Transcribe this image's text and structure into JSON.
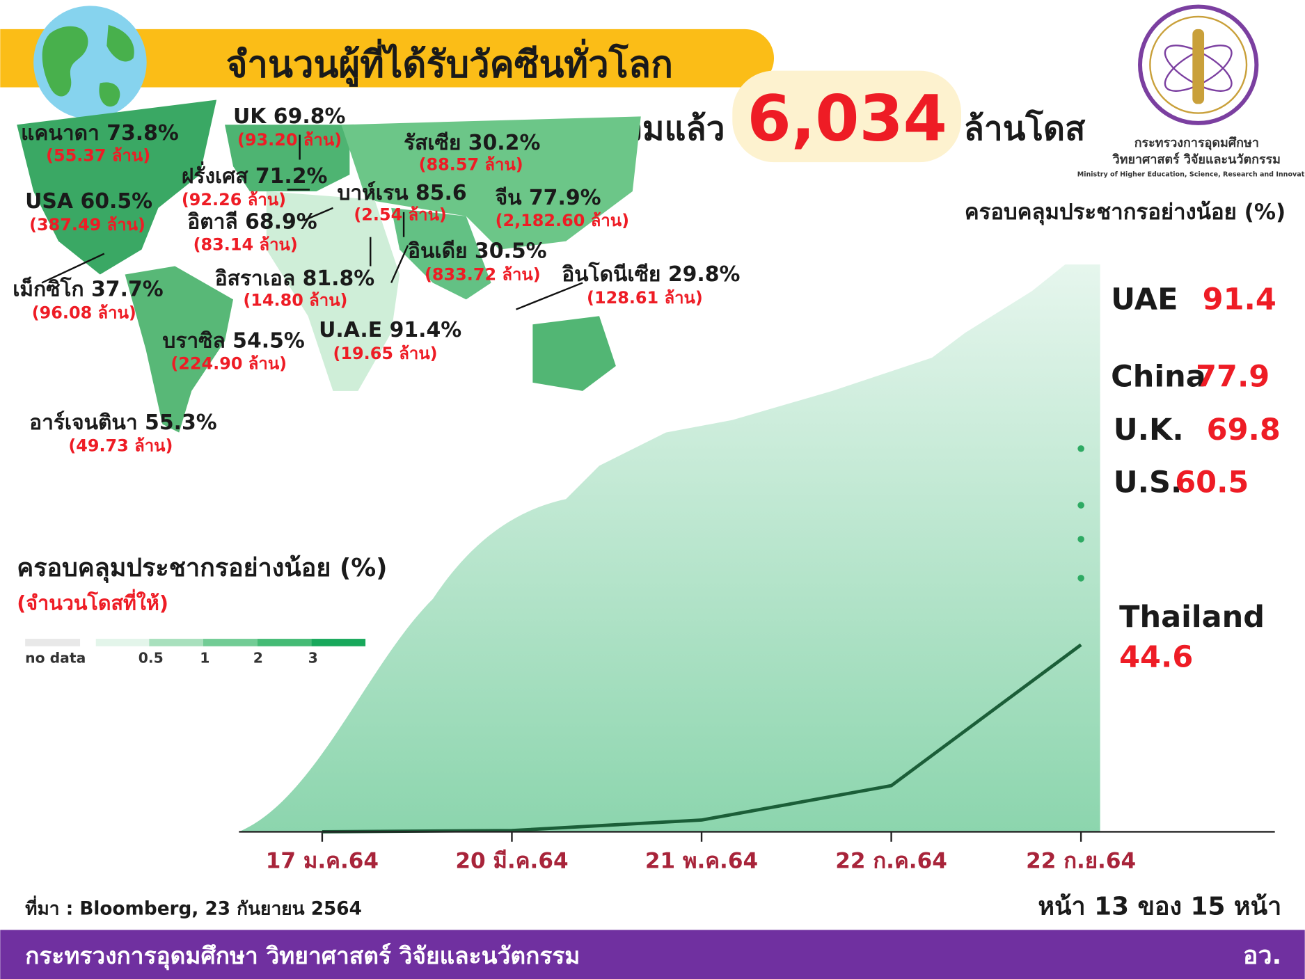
{
  "header": {
    "title": "จำนวนผู้ที่ได้รับวัคซีนทั่วโลก",
    "total_prefix": "รวมแล้ว",
    "total": "6,034",
    "total_suffix": "ล้านโดส"
  },
  "logo": {
    "line1": "กระทรวงการอุดมศึกษา",
    "line2": "วิทยาศาสตร์ วิจัยและนวัตกรรม",
    "line3": "Ministry of Higher Education, Science, Research and Innovation"
  },
  "map": {
    "countries": [
      {
        "label": "แคนาดา 73.8%",
        "doses": "(55.37 ล้าน)"
      },
      {
        "label": "UK 69.8%",
        "doses": "(93.20 ล้าน)"
      },
      {
        "label": "รัสเซีย 30.2%",
        "doses": "(88.57 ล้าน)"
      },
      {
        "label": "ฝรั่งเศส 71.2%",
        "doses": "(92.26 ล้าน)"
      },
      {
        "label": "บาห์เรน 85.6",
        "doses": "(2.54 ล้าน)"
      },
      {
        "label": "จีน 77.9%",
        "doses": "(2,182.60 ล้าน)"
      },
      {
        "label": "USA 60.5%",
        "doses": "(387.49 ล้าน)"
      },
      {
        "label": "อิตาลี 68.9%",
        "doses": "(83.14 ล้าน)"
      },
      {
        "label": "อินเดีย 30.5%",
        "doses": "(833.72 ล้าน)"
      },
      {
        "label": "อินโดนีเซีย 29.8%",
        "doses": "(128.61 ล้าน)"
      },
      {
        "label": "อิสราเอล 81.8%",
        "doses": "(14.80 ล้าน)"
      },
      {
        "label": "เม็กซิโก 37.7%",
        "doses": "(96.08 ล้าน)"
      },
      {
        "label": "U.A.E 91.4%",
        "doses": "(19.65 ล้าน)"
      },
      {
        "label": "บราซิล 54.5%",
        "doses": "(224.90 ล้าน)"
      },
      {
        "label": "อาร์เจนตินา 55.3%",
        "doses": "(49.73 ล้าน)"
      }
    ]
  },
  "legend": {
    "title": "ครอบคลุมประชากรอย่างน้อย (%)",
    "subtitle": "(จำนวนโดสที่ให้)",
    "items": [
      "no data",
      "0.5",
      "1",
      "2",
      "3"
    ]
  },
  "chart_data": {
    "type": "line",
    "title": "ครอบคลุมประชากรอย่างน้อย (%)",
    "categories": [
      "17 ม.ค.64",
      "20 มี.ค.64",
      "21 พ.ค.64",
      "22 ก.ค.64",
      "22 ก.ย.64"
    ],
    "ylim": [
      0,
      100
    ],
    "series": [
      {
        "name": "UAE",
        "color": "#2eaa63",
        "values": [
          null,
          null,
          null,
          null,
          91.4
        ]
      },
      {
        "name": "China",
        "color": "#2eaa63",
        "values": [
          null,
          null,
          null,
          null,
          77.9
        ]
      },
      {
        "name": "U.K.",
        "color": "#2eaa63",
        "values": [
          null,
          null,
          null,
          null,
          69.8
        ]
      },
      {
        "name": "U.S.",
        "color": "#2eaa63",
        "values": [
          null,
          null,
          null,
          null,
          60.5
        ]
      },
      {
        "name": "Thailand",
        "color": "#1b5e38",
        "values": [
          0,
          0.3,
          2.8,
          11,
          44.6
        ]
      }
    ]
  },
  "footer": {
    "source": "ที่มา : Bloomberg, 23 กันยายน 2564",
    "page": "หน้า 13 ของ 15 หน้า",
    "org": "กระทรวงการอุดมศึกษา วิทยาศาสตร์ วิจัยและนวัตกรรม",
    "short": "อว."
  }
}
